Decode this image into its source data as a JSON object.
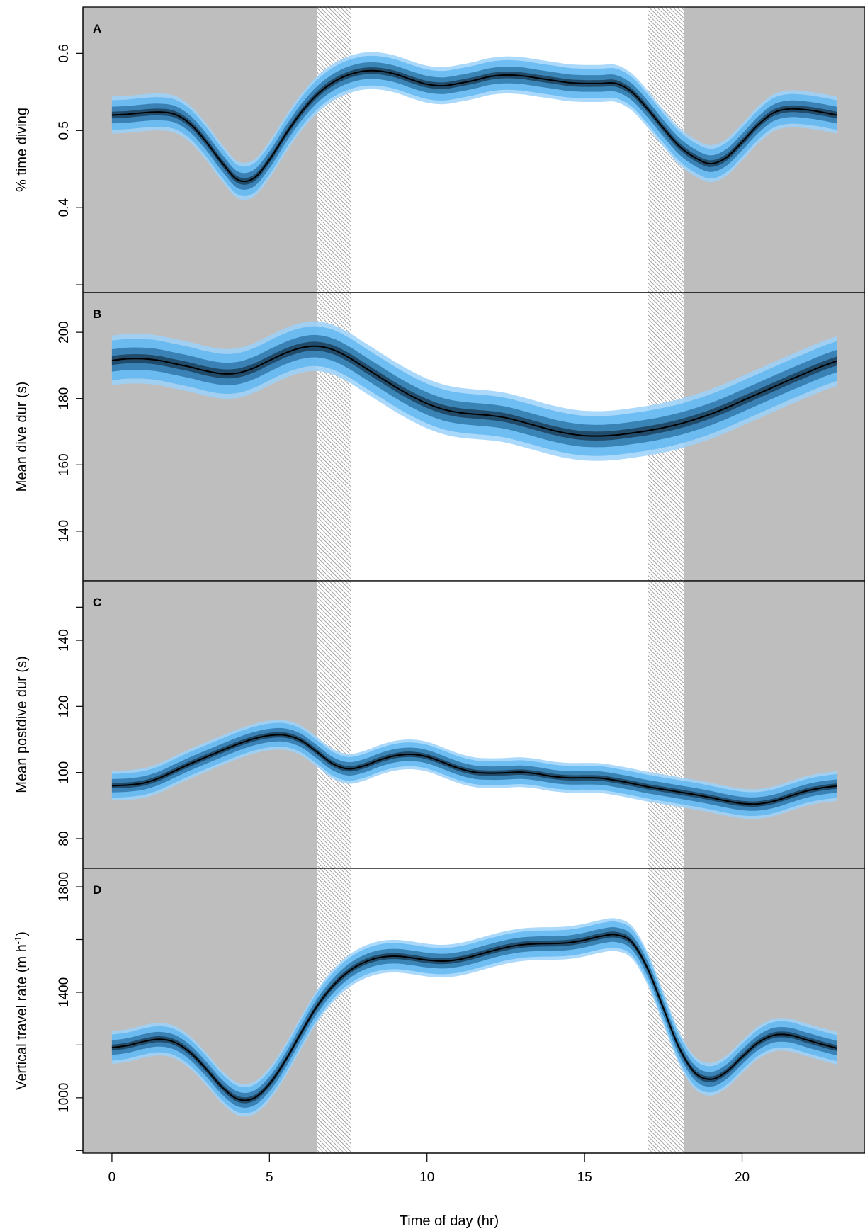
{
  "figure": {
    "xlabel": "Time of day (hr)",
    "x_ticks": [
      0,
      5,
      10,
      15,
      20
    ]
  },
  "colors": {
    "night_background": "#bebebe",
    "day_background": "#ffffff",
    "twilight_hatch": "#8c8c8c",
    "band_outer": "#9cd2fa",
    "band_mid": "#5ab4f0",
    "band_inner": "#2a6fa0",
    "curve": "#000000"
  },
  "chart_data": [
    {
      "type": "line",
      "panel_label": "A",
      "ylabel": "% time diving",
      "xlim": [
        -0.92,
        23.9
      ],
      "ylim": [
        0.29,
        0.66
      ],
      "y_ticks": [
        0.4,
        0.5,
        0.6
      ],
      "y_tick_labels": [
        "0.4",
        "0.5",
        "0.6"
      ],
      "shading": {
        "night": [
          [
            -0.92,
            6.5
          ],
          [
            18.15,
            23.9
          ]
        ],
        "twilight": [
          [
            6.5,
            7.6
          ],
          [
            17.0,
            18.15
          ]
        ],
        "day": [
          [
            7.6,
            17.0
          ]
        ]
      },
      "band_halfwidth": 0.024,
      "series": [
        {
          "x": [
            0,
            0.5,
            1,
            1.5,
            2,
            2.5,
            3,
            3.5,
            4,
            4.5,
            5,
            5.5,
            6,
            6.5,
            7,
            7.5,
            8,
            8.5,
            9,
            9.5,
            10,
            10.5,
            11,
            11.5,
            12,
            12.5,
            13,
            13.5,
            14,
            14.5,
            15,
            15.5,
            16,
            16.5,
            17,
            17.5,
            18,
            18.5,
            19,
            19.5,
            20,
            20.5,
            21,
            21.5,
            22,
            22.5,
            23
          ],
          "y": [
            0.52,
            0.521,
            0.523,
            0.524,
            0.521,
            0.508,
            0.485,
            0.458,
            0.436,
            0.438,
            0.462,
            0.494,
            0.523,
            0.546,
            0.562,
            0.572,
            0.577,
            0.577,
            0.573,
            0.566,
            0.56,
            0.558,
            0.561,
            0.565,
            0.57,
            0.572,
            0.571,
            0.568,
            0.565,
            0.562,
            0.561,
            0.561,
            0.561,
            0.55,
            0.528,
            0.503,
            0.48,
            0.465,
            0.457,
            0.465,
            0.485,
            0.507,
            0.523,
            0.528,
            0.527,
            0.524,
            0.52
          ]
        }
      ]
    },
    {
      "type": "line",
      "panel_label": "B",
      "ylabel": "Mean dive dur (s)",
      "xlim": [
        -0.92,
        23.9
      ],
      "ylim": [
        125,
        212
      ],
      "y_ticks": [
        140,
        160,
        180,
        200
      ],
      "y_tick_labels": [
        "140",
        "160",
        "180",
        "200"
      ],
      "shading": {
        "night": [
          [
            -0.92,
            6.5
          ],
          [
            18.15,
            23.9
          ]
        ],
        "twilight": [
          [
            6.5,
            7.6
          ],
          [
            17.0,
            18.15
          ]
        ],
        "day": [
          [
            7.6,
            17.0
          ]
        ]
      },
      "band_halfwidth": 7.5,
      "series": [
        {
          "x": [
            0,
            0.5,
            1,
            1.5,
            2,
            2.5,
            3,
            3.5,
            4,
            4.5,
            5,
            5.5,
            6,
            6.5,
            7,
            7.5,
            8,
            8.5,
            9,
            9.5,
            10,
            10.5,
            11,
            11.5,
            12,
            12.5,
            13,
            13.5,
            14,
            14.5,
            15,
            15.5,
            16,
            16.5,
            17,
            17.5,
            18,
            18.5,
            19,
            19.5,
            20,
            20.5,
            21,
            21.5,
            22,
            22.5,
            23
          ],
          "y": [
            191.5,
            192.0,
            192.0,
            191.5,
            190.5,
            189.5,
            188.3,
            187.5,
            187.7,
            189.2,
            191.5,
            193.7,
            195.3,
            195.8,
            194.8,
            192.5,
            189.5,
            186.5,
            183.5,
            180.8,
            178.5,
            176.8,
            175.8,
            175.3,
            174.9,
            174.2,
            173.0,
            171.7,
            170.4,
            169.4,
            168.8,
            168.7,
            169.0,
            169.6,
            170.3,
            171.2,
            172.3,
            173.7,
            175.3,
            177.2,
            179.3,
            181.4,
            183.5,
            185.6,
            187.6,
            189.6,
            191.3
          ]
        }
      ]
    },
    {
      "type": "line",
      "panel_label": "C",
      "ylabel": "Mean postdive dur (s)",
      "xlim": [
        -0.92,
        23.9
      ],
      "ylim": [
        71,
        158
      ],
      "y_ticks": [
        80,
        100,
        120,
        140
      ],
      "y_tick_labels": [
        "80",
        "100",
        "120",
        "140"
      ],
      "shading": {
        "night": [
          [
            -0.92,
            6.5
          ],
          [
            18.15,
            23.9
          ]
        ],
        "twilight": [
          [
            6.5,
            7.6
          ],
          [
            17.0,
            18.15
          ]
        ],
        "day": [
          [
            7.6,
            17.0
          ]
        ]
      },
      "band_halfwidth": 4.5,
      "series": [
        {
          "x": [
            0,
            0.5,
            1,
            1.5,
            2,
            2.5,
            3,
            3.5,
            4,
            4.5,
            5,
            5.5,
            6,
            6.5,
            7,
            7.5,
            8,
            8.5,
            9,
            9.5,
            10,
            10.5,
            11,
            11.5,
            12,
            12.5,
            13,
            13.5,
            14,
            14.5,
            15,
            15.5,
            16,
            16.5,
            17,
            17.5,
            18,
            18.5,
            19,
            19.5,
            20,
            20.5,
            21,
            21.5,
            22,
            22.5,
            23
          ],
          "y": [
            96.0,
            96.2,
            96.8,
            98.3,
            100.5,
            102.7,
            104.7,
            106.7,
            108.6,
            110.2,
            111.2,
            111.3,
            109.7,
            106.3,
            102.7,
            101.1,
            102.0,
            103.8,
            105.1,
            105.5,
            104.8,
            103.1,
            101.3,
            100.1,
            99.8,
            99.9,
            100.1,
            99.6,
            98.8,
            98.4,
            98.4,
            98.3,
            97.6,
            96.7,
            95.7,
            94.9,
            94.1,
            93.3,
            92.4,
            91.4,
            90.6,
            90.5,
            91.3,
            92.8,
            94.3,
            95.3,
            95.9
          ]
        }
      ]
    },
    {
      "type": "line",
      "panel_label": "D",
      "ylabel": "Vertical travel rate (m h",
      "ylabel_superscript": "-1",
      "ylabel_suffix": ")",
      "xlim": [
        -0.92,
        23.9
      ],
      "ylim": [
        790,
        1870
      ],
      "y_ticks": [
        1000,
        1400,
        1800
      ],
      "y_tick_labels": [
        "1000",
        "1400",
        "1800"
      ],
      "y_minor_ticks": [
        800,
        1200,
        1600
      ],
      "shading": {
        "night": [
          [
            -0.92,
            6.5
          ],
          [
            18.15,
            23.9
          ]
        ],
        "twilight": [
          [
            6.5,
            7.6
          ],
          [
            17.0,
            18.15
          ]
        ],
        "day": [
          [
            7.6,
            17.0
          ]
        ]
      },
      "band_halfwidth": 62,
      "series": [
        {
          "x": [
            0,
            0.5,
            1,
            1.5,
            2,
            2.5,
            3,
            3.5,
            4,
            4.5,
            5,
            5.5,
            6,
            6.5,
            7,
            7.5,
            8,
            8.5,
            9,
            9.5,
            10,
            10.5,
            11,
            11.5,
            12,
            12.5,
            13,
            13.5,
            14,
            14.5,
            15,
            15.5,
            16,
            16.5,
            17,
            17.5,
            18,
            18.5,
            19,
            19.5,
            20,
            20.5,
            21,
            21.5,
            22,
            22.5,
            23
          ],
          "y": [
            1190,
            1198,
            1213,
            1222,
            1210,
            1170,
            1108,
            1040,
            995,
            998,
            1052,
            1140,
            1245,
            1345,
            1422,
            1478,
            1513,
            1532,
            1537,
            1531,
            1522,
            1518,
            1524,
            1538,
            1555,
            1570,
            1580,
            1584,
            1585,
            1588,
            1598,
            1612,
            1618,
            1590,
            1490,
            1340,
            1190,
            1095,
            1070,
            1098,
            1155,
            1208,
            1237,
            1238,
            1221,
            1204,
            1188
          ]
        }
      ]
    }
  ]
}
